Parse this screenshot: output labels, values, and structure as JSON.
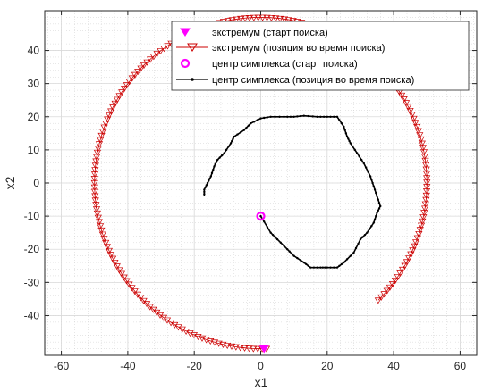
{
  "chart_data": {
    "type": "scatter",
    "xlabel": "x1",
    "ylabel": "x2",
    "xlim": [
      -65,
      65
    ],
    "ylim": [
      -52,
      52
    ],
    "xticks": [
      -60,
      -40,
      -20,
      0,
      20,
      40,
      60
    ],
    "yticks": [
      -40,
      -30,
      -20,
      -10,
      0,
      10,
      20,
      30,
      40
    ],
    "grid": true,
    "minor_grid": true,
    "legend_position": "top-right",
    "colors": {
      "extremum": "#cc0000",
      "start_marker": "#ff00ff",
      "center_path": "#000000"
    },
    "series": [
      {
        "name": "экстремум (старт поиска)",
        "marker": "filled-down-triangle",
        "points": [
          [
            1,
            -50
          ]
        ]
      },
      {
        "name": "экстремум (позиция во время поиска)",
        "marker": "open-down-triangle",
        "arc": {
          "center": [
            0,
            0
          ],
          "radius": 50,
          "start_angle_deg": -88,
          "sweep_deg": -317
        }
      },
      {
        "name": "центр симплекса (старт поиска)",
        "marker": "circle-open",
        "points": [
          [
            0,
            -10
          ]
        ]
      },
      {
        "name": "центр симплекса (позиция во время поиска)",
        "marker": "dot-line",
        "points": [
          [
            0,
            -10
          ],
          [
            3,
            -15
          ],
          [
            5,
            -17
          ],
          [
            8,
            -20
          ],
          [
            10,
            -22
          ],
          [
            13,
            -24
          ],
          [
            15,
            -25.5
          ],
          [
            18,
            -25.5
          ],
          [
            20,
            -25.5
          ],
          [
            23,
            -25.5
          ],
          [
            25,
            -24
          ],
          [
            28,
            -21
          ],
          [
            30,
            -17
          ],
          [
            32,
            -15
          ],
          [
            34,
            -12
          ],
          [
            35,
            -9
          ],
          [
            36,
            -7
          ],
          [
            35,
            -4
          ],
          [
            34,
            -1
          ],
          [
            33,
            2
          ],
          [
            31,
            6
          ],
          [
            29,
            9
          ],
          [
            27,
            12
          ],
          [
            26,
            14
          ],
          [
            25,
            17
          ],
          [
            23,
            20
          ],
          [
            20,
            20
          ],
          [
            17,
            20
          ],
          [
            13,
            20.3
          ],
          [
            10,
            20
          ],
          [
            7,
            20
          ],
          [
            3,
            20
          ],
          [
            0,
            19.5
          ],
          [
            -3,
            18
          ],
          [
            -5,
            16
          ],
          [
            -8,
            14
          ],
          [
            -9,
            12
          ],
          [
            -11,
            9
          ],
          [
            -13,
            7
          ],
          [
            -14,
            5
          ],
          [
            -15,
            2
          ],
          [
            -16,
            0
          ],
          [
            -17,
            -2
          ],
          [
            -17,
            -4
          ]
        ]
      }
    ]
  }
}
